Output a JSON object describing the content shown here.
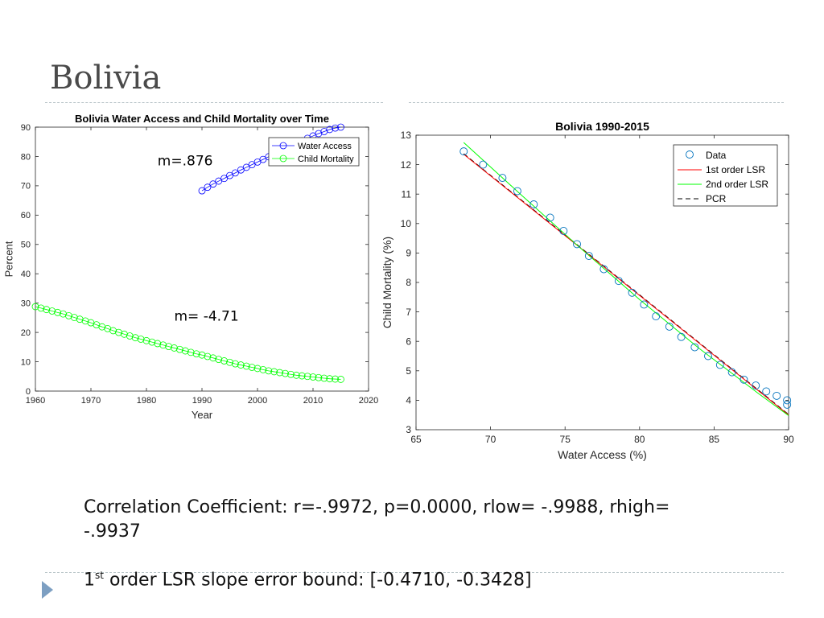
{
  "slide": {
    "title": "Bolivia",
    "caption_line1": "Correlation Coefficient:  r=-.9972, p=0.0000, rlow= -.9988, rhigh= -.9937",
    "caption_line2_prefix": "1",
    "caption_line2_sup": "st",
    "caption_line2_rest": " order LSR slope error bound: [-0.4710,   -0.3428]",
    "accent_color": "#7d9fc2"
  },
  "chart_data": [
    {
      "type": "line",
      "title": "Bolivia Water Access and Child Mortality over Time",
      "xlabel": "Year",
      "ylabel": "Percent",
      "xlim": [
        1960,
        2020
      ],
      "ylim": [
        0,
        90
      ],
      "xticks": [
        1960,
        1970,
        1980,
        1990,
        2000,
        2010,
        2020
      ],
      "yticks": [
        0,
        10,
        20,
        30,
        40,
        50,
        60,
        70,
        80,
        90
      ],
      "legend_position": "top-right",
      "series": [
        {
          "name": "Water Access",
          "color": "#0000ff",
          "x": [
            1990,
            1991,
            1992,
            1993,
            1994,
            1995,
            1996,
            1997,
            1998,
            1999,
            2000,
            2001,
            2002,
            2003,
            2004,
            2005,
            2006,
            2007,
            2008,
            2009,
            2010,
            2011,
            2012,
            2013,
            2014,
            2015
          ],
          "y": [
            68.3,
            69.5,
            70.6,
            71.6,
            72.5,
            73.5,
            74.4,
            75.4,
            76.3,
            77.2,
            78.1,
            79.0,
            79.9,
            80.8,
            81.7,
            82.6,
            83.5,
            84.4,
            85.3,
            86.2,
            87.0,
            87.8,
            88.5,
            89.2,
            89.7,
            90.0
          ]
        },
        {
          "name": "Child Mortality",
          "color": "#00ff00",
          "x": [
            1960,
            1961,
            1962,
            1963,
            1964,
            1965,
            1966,
            1967,
            1968,
            1969,
            1970,
            1971,
            1972,
            1973,
            1974,
            1975,
            1976,
            1977,
            1978,
            1979,
            1980,
            1981,
            1982,
            1983,
            1984,
            1985,
            1986,
            1987,
            1988,
            1989,
            1990,
            1991,
            1992,
            1993,
            1994,
            1995,
            1996,
            1997,
            1998,
            1999,
            2000,
            2001,
            2002,
            2003,
            2004,
            2005,
            2006,
            2007,
            2008,
            2009,
            2010,
            2011,
            2012,
            2013,
            2014,
            2015
          ],
          "y": [
            28.8,
            28.3,
            27.8,
            27.3,
            26.8,
            26.3,
            25.7,
            25.1,
            24.5,
            23.9,
            23.3,
            22.6,
            21.9,
            21.3,
            20.6,
            20.0,
            19.4,
            18.8,
            18.2,
            17.7,
            17.2,
            16.7,
            16.2,
            15.7,
            15.2,
            14.7,
            14.2,
            13.7,
            13.2,
            12.7,
            12.3,
            11.8,
            11.3,
            10.8,
            10.3,
            9.8,
            9.3,
            8.9,
            8.5,
            8.1,
            7.7,
            7.3,
            6.9,
            6.6,
            6.3,
            6.0,
            5.7,
            5.4,
            5.2,
            5.0,
            4.8,
            4.6,
            4.4,
            4.2,
            4.1,
            4.0
          ]
        }
      ],
      "annotations": [
        {
          "text": "m=.876",
          "x": 1982,
          "y": 77
        },
        {
          "text": "m= -4.71",
          "x": 1985,
          "y": 24
        }
      ]
    },
    {
      "type": "scatter",
      "title": "Bolivia 1990-2015",
      "xlabel": "Water Access (%)",
      "ylabel": "Child Mortality (%)",
      "xlim": [
        65,
        90
      ],
      "ylim": [
        3,
        13
      ],
      "xticks": [
        65,
        70,
        75,
        80,
        85,
        90
      ],
      "yticks": [
        3,
        4,
        5,
        6,
        7,
        8,
        9,
        10,
        11,
        12,
        13
      ],
      "legend_position": "top-right",
      "legend": [
        {
          "name": "Data",
          "style": "marker",
          "color": "#0072bd"
        },
        {
          "name": "1st order LSR",
          "style": "line",
          "color": "#ff0000"
        },
        {
          "name": "2nd order LSR",
          "style": "line",
          "color": "#00ff00"
        },
        {
          "name": "PCR",
          "style": "dashed",
          "color": "#000000"
        }
      ],
      "points": {
        "x": [
          68.2,
          69.5,
          70.8,
          71.8,
          72.9,
          74.0,
          74.9,
          75.8,
          76.6,
          77.6,
          78.6,
          79.5,
          80.3,
          81.1,
          82.0,
          82.8,
          83.7,
          84.6,
          85.4,
          86.2,
          87.0,
          87.8,
          88.5,
          89.2,
          89.9,
          89.9
        ],
        "y": [
          12.45,
          12.0,
          11.55,
          11.1,
          10.65,
          10.2,
          9.75,
          9.3,
          8.9,
          8.45,
          8.05,
          7.65,
          7.25,
          6.85,
          6.5,
          6.15,
          5.8,
          5.5,
          5.2,
          4.95,
          4.7,
          4.5,
          4.3,
          4.15,
          4.0,
          3.85
        ]
      },
      "lsr1": {
        "x": [
          68.2,
          90
        ],
        "y": [
          12.35,
          3.5
        ]
      },
      "lsr2": {
        "x": [
          68.2,
          72,
          76,
          80,
          84,
          88,
          90
        ],
        "y": [
          12.75,
          11.0,
          9.18,
          7.42,
          5.76,
          4.22,
          3.48
        ]
      },
      "pcr": {
        "x": [
          68.2,
          90
        ],
        "y": [
          12.37,
          3.52
        ]
      }
    }
  ]
}
